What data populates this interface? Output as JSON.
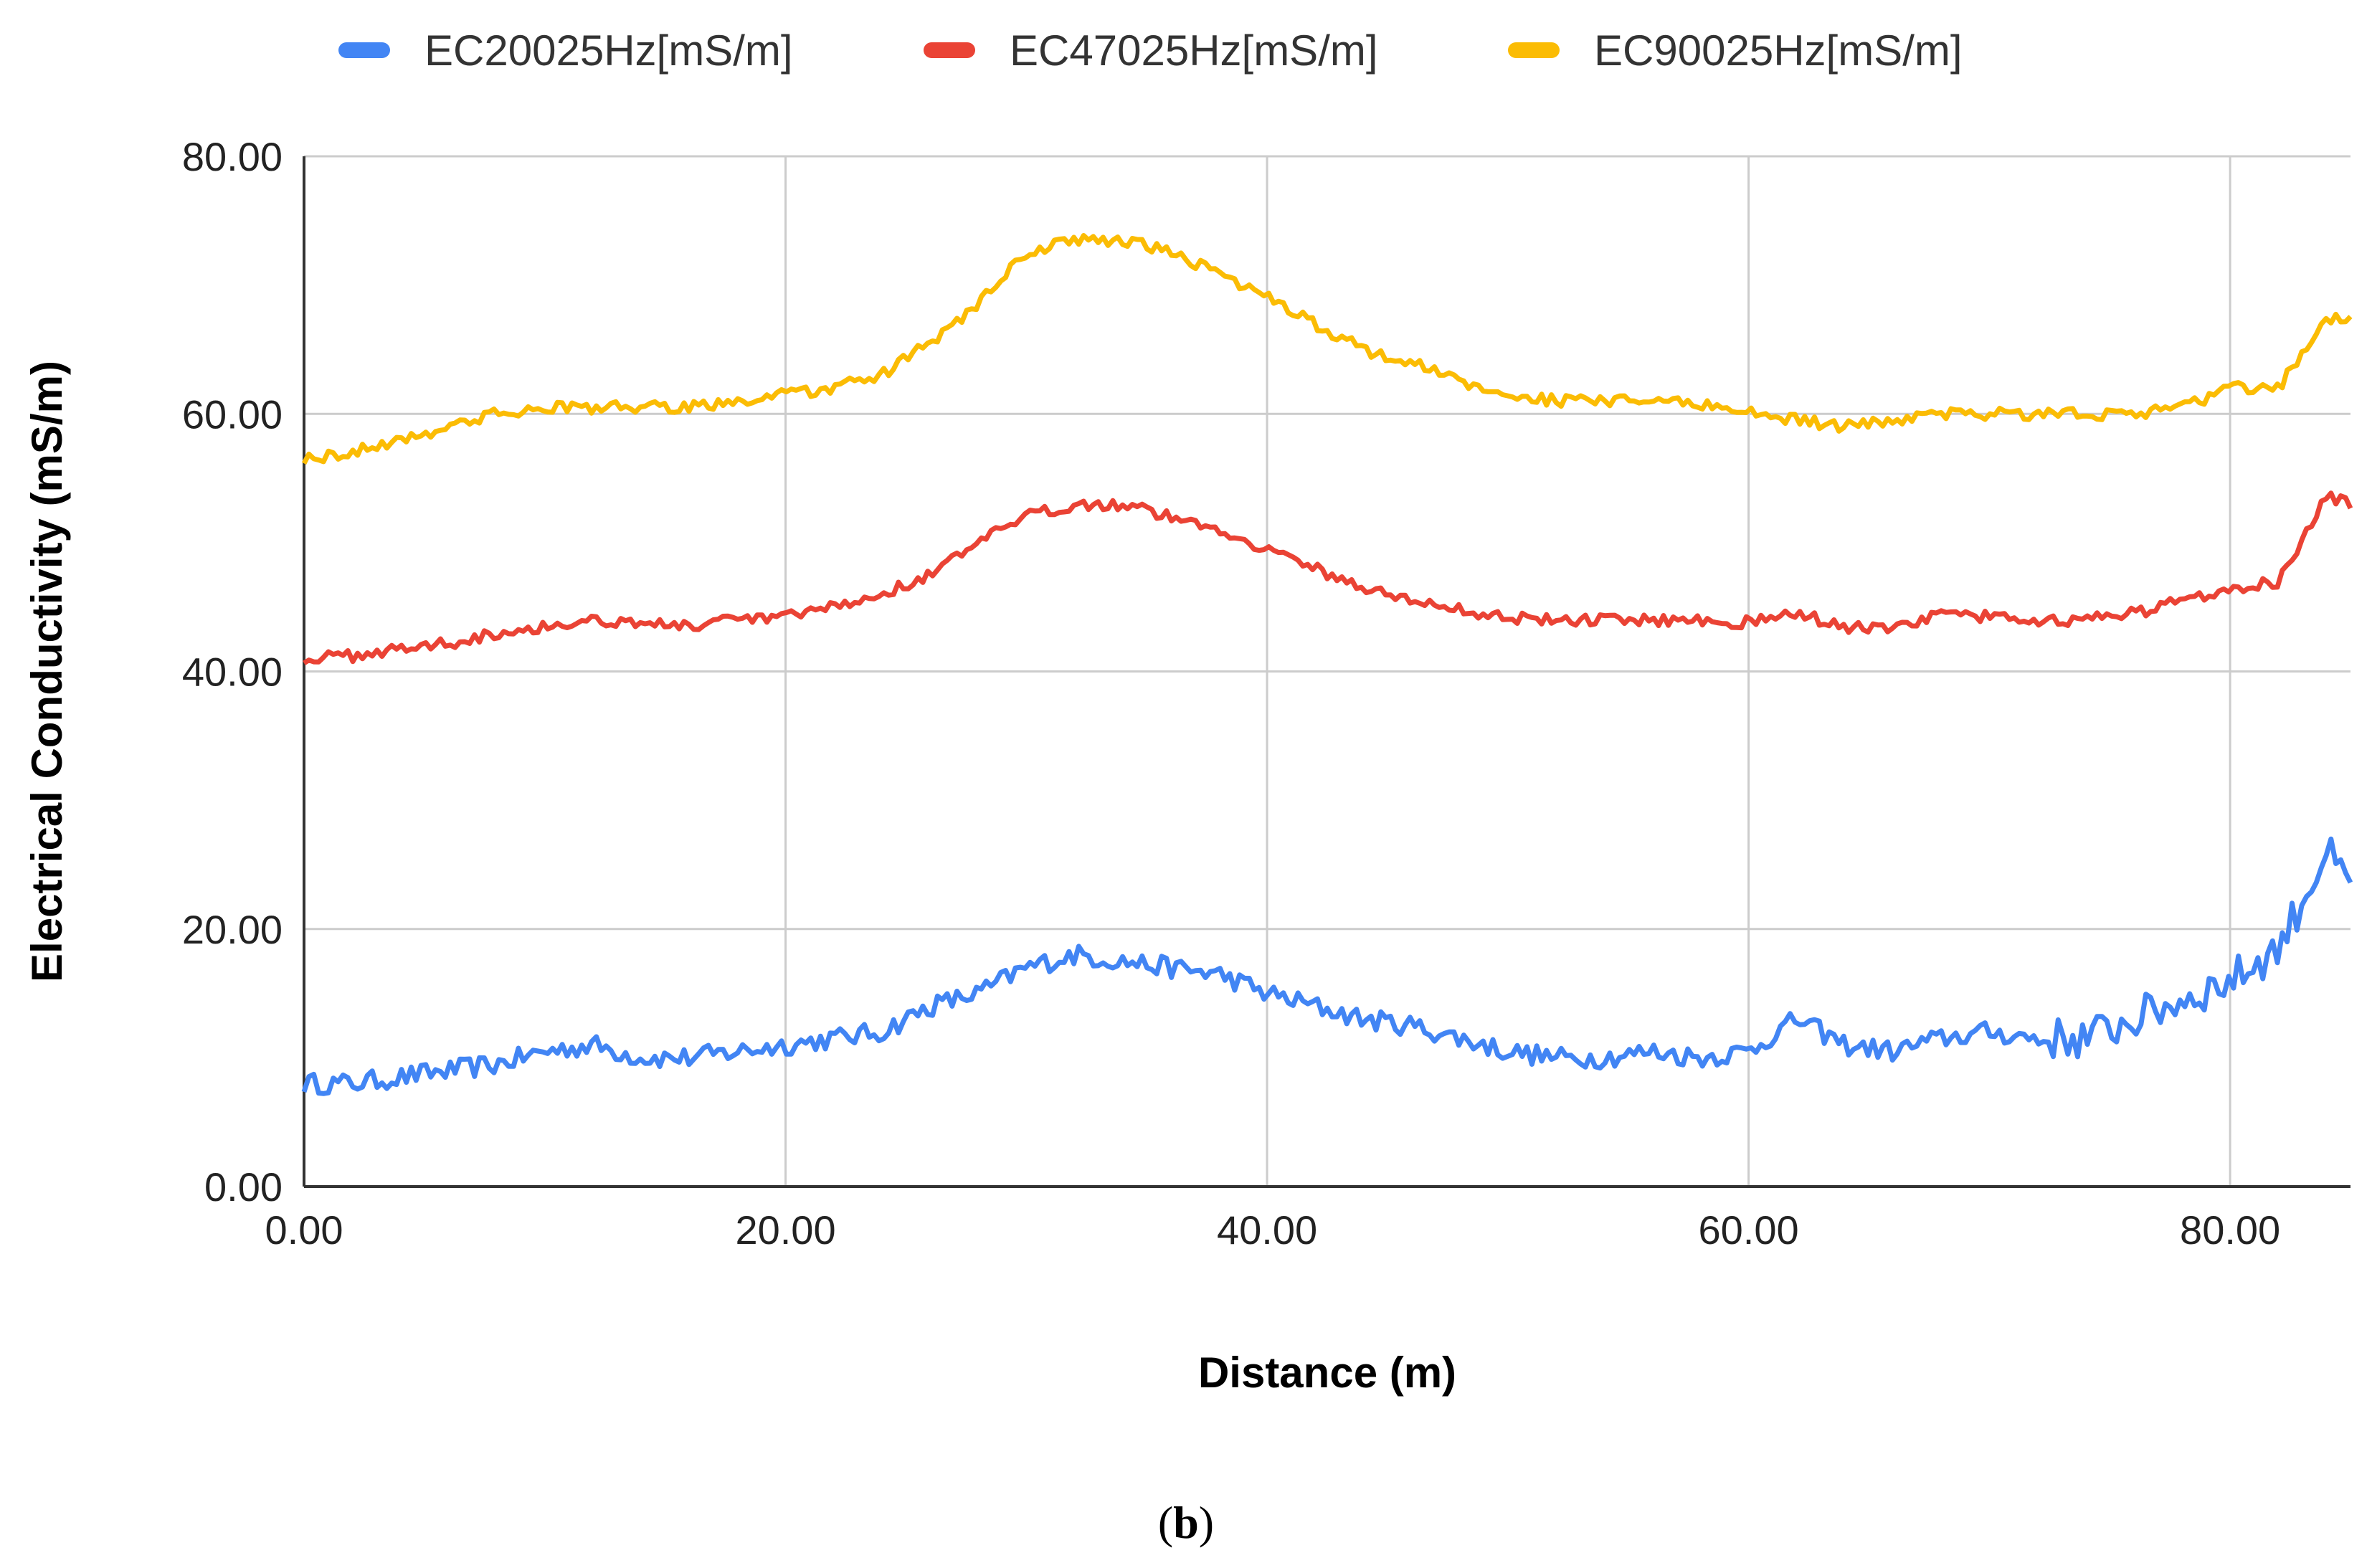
{
  "chart_data": {
    "type": "line",
    "xlabel": "Distance (m)",
    "ylabel": "Electrical Conductivity (mS/m)",
    "xlim": [
      0,
      85
    ],
    "ylim": [
      0,
      80
    ],
    "x_ticks": [
      "0.00",
      "20.00",
      "40.00",
      "60.00",
      "80.00"
    ],
    "y_ticks": [
      "0.00",
      "20.00",
      "40.00",
      "60.00",
      "80.00"
    ],
    "grid": true,
    "legend_position": "top",
    "caption_prefix": "(",
    "caption_letter": "b",
    "caption_suffix": ")",
    "series": [
      {
        "name": "EC20025Hz[mS/m]",
        "color": "#4285F4",
        "x": [
          0,
          2,
          4,
          6,
          8,
          10,
          12,
          14,
          16,
          18,
          20,
          22,
          24,
          26,
          28,
          30,
          32,
          34,
          36,
          38,
          40,
          42,
          44,
          46,
          48,
          50,
          52,
          54,
          56,
          58,
          60,
          62,
          64,
          66,
          68,
          70,
          72,
          74,
          76,
          78,
          80,
          82,
          84,
          85
        ],
        "y": [
          8,
          8,
          8.5,
          9,
          9.5,
          10.5,
          11,
          10,
          10,
          10.5,
          11,
          11.5,
          12,
          14,
          15,
          17,
          18,
          17.5,
          17,
          16.5,
          15,
          14,
          13,
          12.5,
          11.5,
          10.5,
          10,
          10,
          10.5,
          10,
          10.5,
          13,
          11,
          10.5,
          11.5,
          12,
          11.5,
          11.5,
          13,
          14.5,
          16,
          18.5,
          26,
          23
        ]
      },
      {
        "name": "EC47025Hz[mS/m]",
        "color": "#EA4335",
        "x": [
          0,
          2,
          4,
          6,
          8,
          10,
          12,
          14,
          16,
          18,
          20,
          22,
          24,
          26,
          28,
          30,
          32,
          34,
          36,
          38,
          40,
          42,
          44,
          46,
          48,
          50,
          52,
          54,
          56,
          58,
          60,
          62,
          64,
          66,
          68,
          70,
          72,
          74,
          76,
          78,
          80,
          82,
          84,
          85
        ],
        "y": [
          41,
          41.2,
          41.8,
          42.2,
          43,
          43.5,
          44,
          43.8,
          43.5,
          44,
          44.2,
          45,
          46,
          47.5,
          50,
          52,
          53,
          53,
          52,
          51,
          49.5,
          48,
          46.5,
          45.5,
          44.8,
          44.2,
          44,
          44,
          44,
          44,
          43.8,
          44.5,
          43.5,
          43.2,
          44.5,
          44.2,
          44,
          44,
          44.5,
          45.5,
          46.5,
          47,
          53.5,
          53
        ]
      },
      {
        "name": "EC90025Hz[mS/m]",
        "color": "#FBBC04",
        "x": [
          0,
          2,
          4,
          6,
          8,
          10,
          12,
          14,
          16,
          18,
          20,
          22,
          24,
          26,
          28,
          30,
          32,
          34,
          36,
          38,
          40,
          42,
          44,
          46,
          48,
          50,
          52,
          54,
          56,
          58,
          60,
          62,
          64,
          66,
          68,
          70,
          72,
          74,
          76,
          78,
          80,
          82,
          84,
          85
        ],
        "y": [
          56.5,
          57,
          58,
          59,
          60,
          60.5,
          60.5,
          60.5,
          60.5,
          61,
          61.5,
          62,
          63,
          65.5,
          68.5,
          72.5,
          73.5,
          73.5,
          72.5,
          71,
          69,
          67,
          65,
          64,
          62.5,
          61.5,
          61,
          61,
          61,
          60.8,
          60.2,
          59.5,
          59,
          59.5,
          60,
          60,
          60,
          60,
          60,
          60.5,
          62,
          62,
          67.5,
          67.5
        ]
      }
    ]
  }
}
